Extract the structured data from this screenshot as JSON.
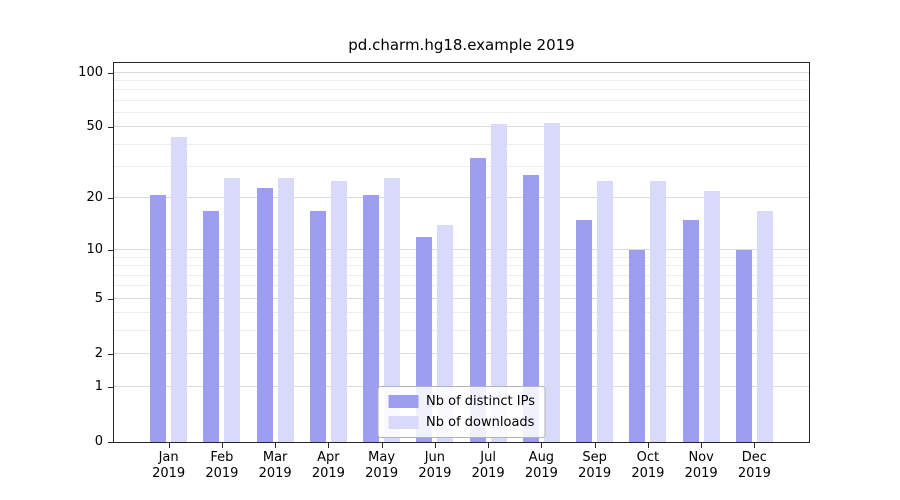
{
  "title": "pd.charm.hg18.example 2019",
  "colors": {
    "distinct_ips": "#9e9ef0",
    "downloads": "#d9d9f9",
    "grid_major": "#dcdcdc",
    "grid_minor": "#ececec",
    "axis": "#262626",
    "text": "#000000"
  },
  "legend": {
    "items": [
      {
        "label": "Nb of distinct IPs",
        "color_key": "distinct_ips"
      },
      {
        "label": "Nb of downloads",
        "color_key": "downloads"
      }
    ]
  },
  "chart_data": {
    "type": "bar",
    "scale": "log1p",
    "title": "pd.charm.hg18.example 2019",
    "categories": [
      "Jan",
      "Feb",
      "Mar",
      "Apr",
      "May",
      "Jun",
      "Jul",
      "Aug",
      "Sep",
      "Oct",
      "Nov",
      "Dec"
    ],
    "x_year_line": "2019",
    "series": [
      {
        "name": "Nb of distinct IPs",
        "color": "#9e9ef0",
        "values": [
          21,
          17,
          23,
          17,
          21,
          12,
          34,
          27,
          15,
          10,
          15,
          10
        ]
      },
      {
        "name": "Nb of downloads",
        "color": "#d9d9f9",
        "values": [
          44,
          26,
          26,
          25,
          26,
          14,
          52,
          53,
          25,
          25,
          22,
          17
        ]
      }
    ],
    "yticks": [
      0,
      1,
      2,
      5,
      10,
      20,
      50,
      100
    ],
    "minor_yticks": [
      3,
      4,
      6,
      7,
      8,
      9,
      30,
      40,
      60,
      70,
      80,
      90
    ],
    "ylim": [
      0,
      113
    ],
    "grid": true,
    "legend_position": "lower center"
  }
}
